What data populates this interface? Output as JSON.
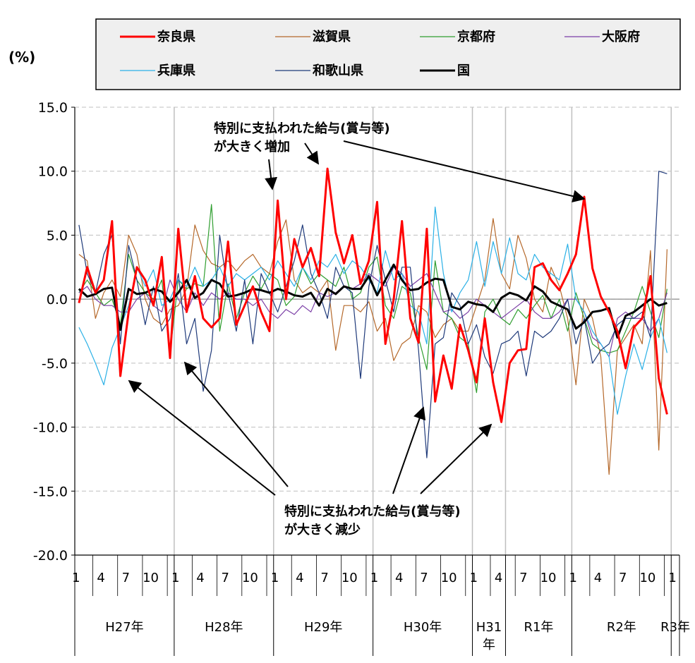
{
  "chart_data": {
    "type": "line",
    "unit_label": "(%)",
    "ylim": [
      -20,
      15
    ],
    "y_ticks": [
      "15.0",
      "10.0",
      "5.0",
      "0.0",
      "-5.0",
      "-10.0",
      "-15.0",
      "-20.0"
    ],
    "y_tick_values": [
      15,
      10,
      5,
      0,
      -5,
      -10,
      -15,
      -20
    ],
    "x_tick_labels": [
      "1",
      "4",
      "7",
      "10",
      "1",
      "4",
      "7",
      "10",
      "1",
      "4",
      "7",
      "10",
      "1",
      "4",
      "7",
      "10",
      "1",
      "4",
      "7",
      "10",
      "1",
      "4",
      "7",
      "10",
      "1"
    ],
    "x_tick_months": [
      1,
      4,
      7,
      10,
      13,
      16,
      19,
      22,
      25,
      28,
      31,
      34,
      37,
      40,
      43,
      46,
      49,
      52,
      55,
      58,
      61,
      64,
      67,
      70,
      73
    ],
    "year_groups": [
      {
        "label": "H27年",
        "start": 1,
        "end": 12
      },
      {
        "label": "H28年",
        "start": 13,
        "end": 24
      },
      {
        "label": "H29年",
        "start": 25,
        "end": 36
      },
      {
        "label": "H30年",
        "start": 37,
        "end": 48
      },
      {
        "label": "H31年",
        "start": 49,
        "end": 52
      },
      {
        "label": "R1年",
        "start": 53,
        "end": 60
      },
      {
        "label": "R2年",
        "start": 61,
        "end": 72
      },
      {
        "label": "R3年",
        "start": 73,
        "end": 73
      }
    ],
    "grid": "horizontal dashed, vertical at year boundaries",
    "legend_position": "top",
    "series": [
      {
        "name": "奈良県",
        "color": "#ff0000",
        "width": 3,
        "values": [
          -0.3,
          2.5,
          0.5,
          1.5,
          6.1,
          -6.0,
          -1.0,
          2.5,
          1.5,
          -0.5,
          3.3,
          -4.6,
          5.5,
          -1.0,
          1.8,
          -1.5,
          -2.2,
          -1.5,
          4.5,
          -2.0,
          -0.5,
          1.0,
          -1.0,
          -2.5,
          7.7,
          0.0,
          4.7,
          2.5,
          4.0,
          1.8,
          10.2,
          5.2,
          2.8,
          5.0,
          1.2,
          3.0,
          7.6,
          -3.5,
          0.0,
          6.1,
          -1.5,
          -3.4,
          5.5,
          -8.0,
          -4.4,
          -7.0,
          -2.0,
          -4.0,
          -6.5,
          -1.5,
          -6.5,
          -9.6,
          -5.0,
          -4.0,
          -3.9,
          2.5,
          2.8,
          1.5,
          0.7,
          2.0,
          3.5,
          8.0,
          2.4,
          0.2,
          -1.0,
          -2.5,
          -5.4,
          -2.2,
          -1.5,
          1.8,
          -6.2,
          -9.0
        ]
      },
      {
        "name": "滋賀県",
        "color": "#b5682a",
        "width": 1.2,
        "values": [
          3.5,
          3.0,
          -1.5,
          0.5,
          1.5,
          0.2,
          5.0,
          3.5,
          0.0,
          -1.5,
          -2.0,
          -0.8,
          -0.5,
          0.8,
          5.8,
          3.8,
          2.8,
          2.5,
          3.0,
          2.2,
          3.0,
          3.5,
          2.5,
          2.0,
          4.5,
          6.2,
          1.5,
          0.5,
          1.0,
          0.5,
          1.5,
          -4.0,
          -0.5,
          -0.5,
          -1.0,
          -0.2,
          -2.5,
          -1.5,
          -4.8,
          -3.5,
          -3.0,
          -0.5,
          -1.0,
          -3.0,
          -2.0,
          -1.5,
          -2.5,
          -2.5,
          -0.5,
          1.5,
          6.3,
          2.0,
          0.8,
          5.0,
          3.2,
          0.0,
          -1.0,
          2.5,
          1.0,
          -1.5,
          -6.7,
          0.0,
          -1.5,
          -4.5,
          -13.7,
          -4.0,
          -3.0,
          -2.0,
          -3.5,
          3.8,
          -11.8,
          3.9
        ]
      },
      {
        "name": "京都府",
        "color": "#2f9e2f",
        "width": 1.2,
        "values": [
          0.5,
          1.5,
          0.5,
          -0.5,
          0.0,
          -2.0,
          3.5,
          1.5,
          0.5,
          0.0,
          1.5,
          -4.2,
          1.5,
          0.8,
          1.2,
          1.0,
          7.4,
          -2.5,
          1.2,
          -1.5,
          0.5,
          1.8,
          0.8,
          2.0,
          1.5,
          -0.5,
          0.2,
          2.5,
          1.2,
          2.0,
          1.5,
          1.0,
          2.5,
          0.0,
          0.5,
          2.5,
          3.3,
          -0.5,
          -1.5,
          1.0,
          0.5,
          -3.0,
          -5.5,
          3.0,
          -1.0,
          -1.5,
          -3.0,
          -3.5,
          -7.3,
          -1.0,
          0.0,
          -1.5,
          -2.0,
          -0.8,
          -1.5,
          -0.5,
          0.3,
          -1.5,
          0.0,
          -2.5,
          0.5,
          -1.5,
          -3.5,
          -4.0,
          -4.2,
          -4.0,
          -2.5,
          -1.0,
          1.0,
          -1.0,
          -3.0,
          0.8
        ]
      },
      {
        "name": "大阪府",
        "color": "#7b3fa6",
        "width": 1.2,
        "values": [
          0.5,
          1.0,
          0.0,
          -0.5,
          -0.5,
          -1.0,
          -1.0,
          0.0,
          0.5,
          -0.5,
          -1.0,
          1.5,
          0.0,
          -1.0,
          0.5,
          -0.5,
          0.5,
          0.0,
          0.5,
          0.0,
          0.0,
          -0.5,
          0.0,
          -1.0,
          -1.5,
          -0.8,
          -1.2,
          -0.5,
          -1.0,
          0.5,
          0.2,
          0.5,
          1.0,
          0.8,
          1.2,
          2.0,
          1.5,
          1.0,
          2.5,
          2.0,
          1.0,
          1.5,
          2.0,
          0.5,
          -1.0,
          -0.8,
          -1.5,
          -1.0,
          0.0,
          -0.5,
          -1.0,
          -1.5,
          -1.0,
          -0.5,
          0.0,
          -1.0,
          -1.5,
          -1.5,
          -1.0,
          0.0,
          0.0,
          -1.0,
          -3.0,
          -3.5,
          -4.5,
          -1.5,
          -1.0,
          -1.5,
          -1.5,
          -2.5,
          -1.5,
          0.5
        ]
      },
      {
        "name": "兵庫県",
        "color": "#2ab0e6",
        "width": 1.2,
        "values": [
          -2.2,
          -3.5,
          -5.0,
          -6.7,
          -3.8,
          -2.2,
          -0.5,
          2.5,
          1.0,
          2.3,
          -0.5,
          0.0,
          1.5,
          1.0,
          2.5,
          1.0,
          1.5,
          2.5,
          1.0,
          2.0,
          1.5,
          2.0,
          2.5,
          1.5,
          3.0,
          2.0,
          1.0,
          2.5,
          1.5,
          3.0,
          2.5,
          3.5,
          2.0,
          3.0,
          2.5,
          1.5,
          0.5,
          3.8,
          1.5,
          2.0,
          -0.5,
          -1.0,
          -3.5,
          7.2,
          2.0,
          -1.0,
          0.5,
          1.5,
          4.5,
          1.0,
          4.5,
          2.0,
          4.8,
          2.0,
          1.5,
          3.5,
          2.5,
          2.0,
          1.5,
          4.3,
          0.0,
          -1.0,
          -2.5,
          -3.5,
          -4.5,
          -9.0,
          -6.0,
          -3.5,
          -5.5,
          -3.0,
          -1.5,
          -4.2
        ]
      },
      {
        "name": "和歌山県",
        "color": "#1f3a7a",
        "width": 1.2,
        "values": [
          5.8,
          2.0,
          0.5,
          3.5,
          5.0,
          -3.5,
          4.2,
          1.5,
          -2.0,
          1.0,
          -2.5,
          -1.5,
          2.0,
          -3.5,
          -1.5,
          -7.2,
          -4.0,
          5.0,
          0.5,
          -2.5,
          1.5,
          -3.5,
          2.0,
          0.5,
          -1.0,
          1.0,
          3.0,
          5.8,
          2.0,
          0.5,
          -1.5,
          2.5,
          1.0,
          0.5,
          -6.2,
          1.0,
          4.2,
          1.5,
          -1.0,
          2.5,
          2.5,
          -4.0,
          -12.4,
          -3.5,
          -3.0,
          0.5,
          -0.5,
          -3.5,
          -2.0,
          -4.5,
          -5.8,
          -3.5,
          -3.2,
          -2.5,
          -6.0,
          -2.5,
          -3.0,
          -2.5,
          -1.5,
          0.0,
          -3.5,
          -1.5,
          -5.0,
          -4.0,
          -3.5,
          -2.0,
          -1.5,
          -1.5,
          -1.0,
          -3.0,
          10.0,
          9.8
        ]
      },
      {
        "name": "国",
        "color": "#000000",
        "width": 3,
        "values": [
          0.8,
          0.2,
          0.4,
          0.8,
          0.9,
          -2.4,
          0.8,
          0.4,
          0.5,
          0.8,
          0.6,
          -0.2,
          0.5,
          1.5,
          0.1,
          0.5,
          1.5,
          1.2,
          0.2,
          0.3,
          0.5,
          0.8,
          0.7,
          0.5,
          0.8,
          0.6,
          0.3,
          0.2,
          0.5,
          -0.5,
          0.8,
          0.4,
          1.0,
          0.8,
          0.8,
          1.8,
          0.3,
          1.5,
          2.7,
          1.5,
          0.7,
          0.8,
          1.3,
          1.6,
          1.5,
          -0.6,
          -0.8,
          -0.2,
          -0.4,
          -0.5,
          -1.0,
          0.1,
          0.5,
          0.3,
          -0.1,
          1.0,
          0.6,
          -0.2,
          -0.5,
          -0.8,
          -2.3,
          -1.8,
          -1.0,
          -0.9,
          -0.7,
          -3.0,
          -1.3,
          -1.0,
          -0.5,
          0.0,
          -0.5,
          -0.3
        ]
      }
    ],
    "annotations": [
      {
        "text": "特別に支払われた給与(賞与等)"
      },
      {
        "text": "が大きく増加"
      },
      {
        "text": "特別に支払われた給与(賞与等)"
      },
      {
        "text": "が大きく減少"
      }
    ]
  }
}
